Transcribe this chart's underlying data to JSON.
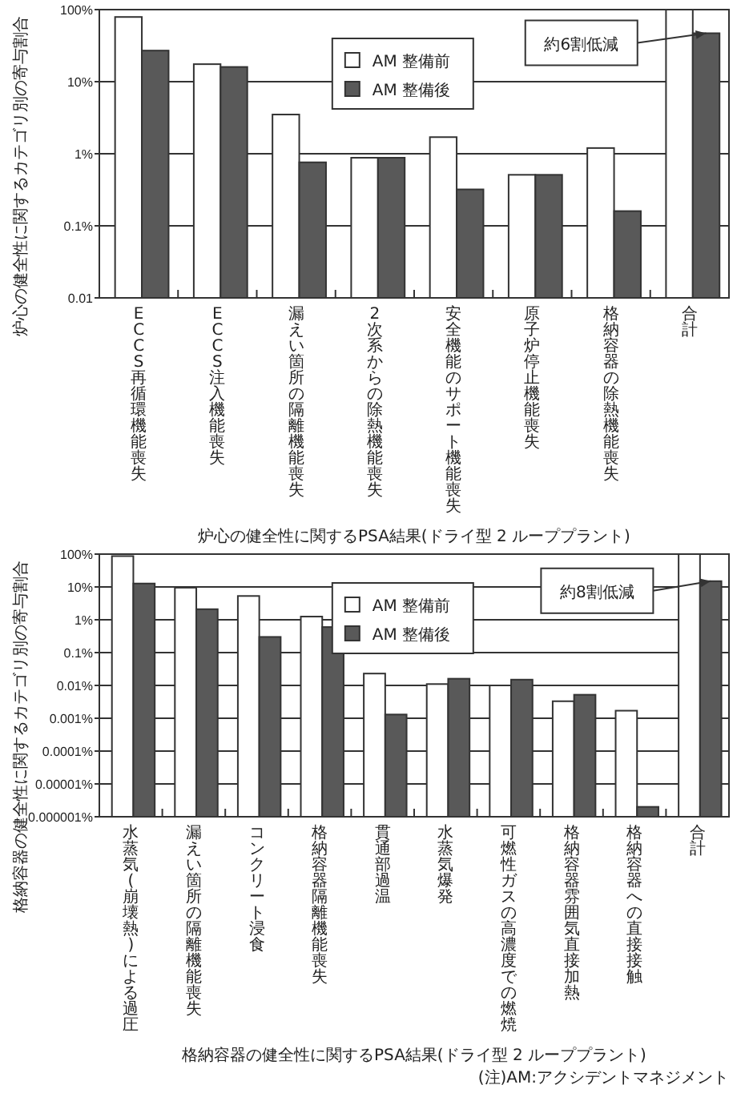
{
  "chart_data": [
    {
      "type": "bar",
      "title": "炉心の健全性に関するPSA結果(ドライ型 2 ループプラント)",
      "ylabel": "炉心の健全性に関するカテゴリ別の寄与割合",
      "categories": [
        "ECCS再循環機能喪失",
        "ECCS注入機能喪失",
        "漏えい箇所の隔離機能喪失",
        "2次系からの除熱機能喪失",
        "安全機能のサポート機能喪失",
        "原子炉停止機能喪失",
        "格納容器の除熱機能喪失",
        "合計"
      ],
      "series": [
        {
          "name": "AM 整備前",
          "color": "#ffffff",
          "values": [
            79,
            17.5,
            3.5,
            0.88,
            1.7,
            0.51,
            1.2,
            100
          ]
        },
        {
          "name": "AM 整備後",
          "color": "#595959",
          "values": [
            27,
            16,
            0.76,
            0.88,
            0.32,
            0.51,
            0.16,
            47
          ]
        }
      ],
      "log": true,
      "ylim": [
        0.01,
        100
      ],
      "yticks": [
        {
          "value": 0.01,
          "label": "0.01"
        },
        {
          "value": 0.1,
          "label": "0.1%"
        },
        {
          "value": 1,
          "label": "1%"
        },
        {
          "value": 10,
          "label": "10%"
        },
        {
          "value": 100,
          "label": "100%"
        }
      ],
      "grid": "y",
      "legend": "top",
      "annotations": [
        {
          "text": "約6割低減",
          "x": "合計",
          "y": 47
        }
      ]
    },
    {
      "type": "bar",
      "title": "格納容器の健全性に関するPSA結果(ドライ型 2 ループプラント)",
      "ylabel": "格納容器の健全性に関するカテゴリ別の寄与割合",
      "categories": [
        "水蒸気(崩壊熱)による過圧",
        "漏えい箇所の隔離機能喪失",
        "コンクリート浸食",
        "格納容器隔離機能喪失",
        "貫通部過温",
        "水蒸気爆発",
        "可燃性ガスの高濃度での燃焼",
        "格納容器雰囲気直接加熱",
        "格納容器への直接接触",
        "合計"
      ],
      "series": [
        {
          "name": "AM 整備前",
          "color": "#ffffff",
          "values": [
            87,
            9.5,
            5.3,
            1.25,
            0.023,
            0.011,
            0.01,
            0.0033,
            0.0017,
            100
          ]
        },
        {
          "name": "AM 整備後",
          "color": "#595959",
          "values": [
            12.7,
            2.1,
            0.3,
            0.6,
            0.0013,
            0.016,
            0.015,
            0.0052,
            2e-06,
            15
          ]
        }
      ],
      "log": true,
      "ylim": [
        1e-06,
        100
      ],
      "yticks": [
        {
          "value": 1e-06,
          "label": "0.000001%"
        },
        {
          "value": 1e-05,
          "label": "0.00001%"
        },
        {
          "value": 0.0001,
          "label": "0.0001%"
        },
        {
          "value": 0.001,
          "label": "0.001%"
        },
        {
          "value": 0.01,
          "label": "0.01%"
        },
        {
          "value": 0.1,
          "label": "0.1%"
        },
        {
          "value": 1,
          "label": "1%"
        },
        {
          "value": 10,
          "label": "10%"
        },
        {
          "value": 100,
          "label": "100%"
        }
      ],
      "grid": "y",
      "legend": "top",
      "annotations": [
        {
          "text": "約8割低減",
          "x": "合計",
          "y": 15
        },
        "(注)AM:アクシデントマネジメント"
      ]
    }
  ]
}
